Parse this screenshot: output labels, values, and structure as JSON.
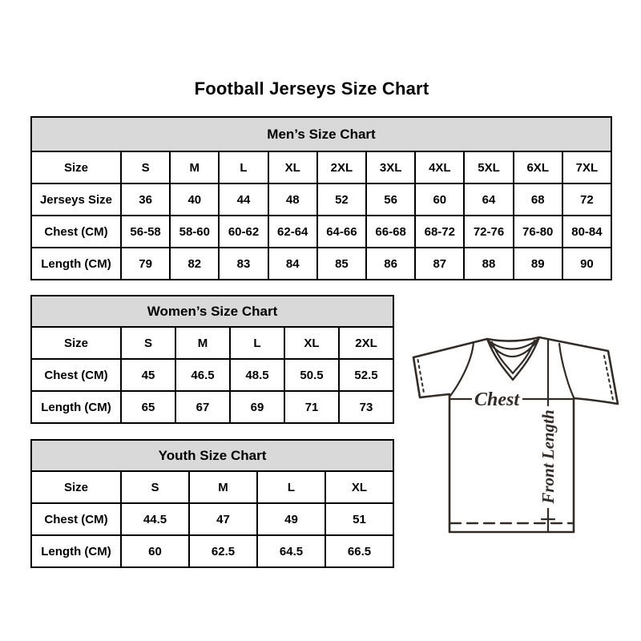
{
  "page_title": "Football Jerseys Size Chart",
  "colors": {
    "table_header_bg": "#d9d9d9",
    "table_border": "#000000",
    "text": "#000000",
    "diagram_stroke": "#332b24"
  },
  "tables": [
    {
      "title": "Men’s Size Chart",
      "rows": [
        [
          "Size",
          "S",
          "M",
          "L",
          "XL",
          "2XL",
          "3XL",
          "4XL",
          "5XL",
          "6XL",
          "7XL"
        ],
        [
          "Jerseys Size",
          "36",
          "40",
          "44",
          "48",
          "52",
          "56",
          "60",
          "64",
          "68",
          "72"
        ],
        [
          "Chest (CM)",
          "56-58",
          "58-60",
          "60-62",
          "62-64",
          "64-66",
          "66-68",
          "68-72",
          "72-76",
          "76-80",
          "80-84"
        ],
        [
          "Length (CM)",
          "79",
          "82",
          "83",
          "84",
          "85",
          "86",
          "87",
          "88",
          "89",
          "90"
        ]
      ]
    },
    {
      "title": "Women’s Size Chart",
      "rows": [
        [
          "Size",
          "S",
          "M",
          "L",
          "XL",
          "2XL"
        ],
        [
          "Chest (CM)",
          "45",
          "46.5",
          "48.5",
          "50.5",
          "52.5"
        ],
        [
          "Length (CM)",
          "65",
          "67",
          "69",
          "71",
          "73"
        ]
      ]
    },
    {
      "title": "Youth Size Chart",
      "rows": [
        [
          "Size",
          "S",
          "M",
          "L",
          "XL"
        ],
        [
          "Chest (CM)",
          "44.5",
          "47",
          "49",
          "51"
        ],
        [
          "Length (CM)",
          "60",
          "62.5",
          "64.5",
          "66.5"
        ]
      ]
    }
  ],
  "diagram": {
    "chest_label": "Chest",
    "front_length_label": "Front Length"
  }
}
